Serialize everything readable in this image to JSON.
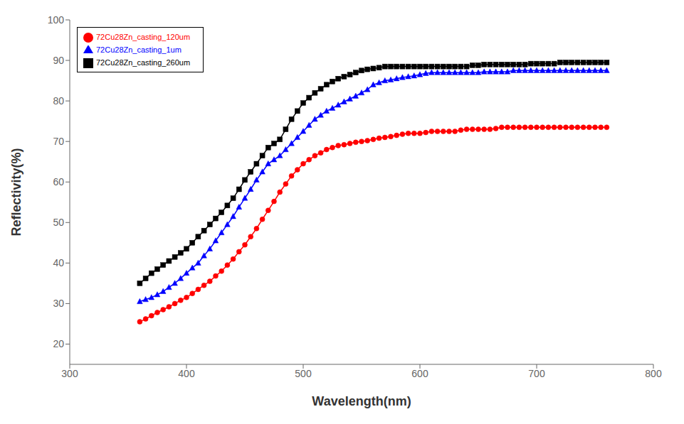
{
  "chart_data": {
    "type": "line",
    "xlabel": "Wavelength(nm)",
    "ylabel": "Reflectivity(%)",
    "xlim": [
      300,
      800
    ],
    "ylim": [
      15,
      100
    ],
    "xticks": [
      300,
      400,
      500,
      600,
      700,
      800
    ],
    "yticks": [
      20,
      30,
      40,
      50,
      60,
      70,
      80,
      90,
      100
    ],
    "grid": false,
    "legend": "upper left",
    "x": [
      360,
      365,
      370,
      375,
      380,
      385,
      390,
      395,
      400,
      405,
      410,
      415,
      420,
      425,
      430,
      435,
      440,
      445,
      450,
      455,
      460,
      465,
      470,
      475,
      480,
      485,
      490,
      495,
      500,
      505,
      510,
      515,
      520,
      525,
      530,
      535,
      540,
      545,
      550,
      555,
      560,
      565,
      570,
      575,
      580,
      585,
      590,
      595,
      600,
      605,
      610,
      615,
      620,
      625,
      630,
      635,
      640,
      645,
      650,
      655,
      660,
      665,
      670,
      675,
      680,
      685,
      690,
      695,
      700,
      705,
      710,
      715,
      720,
      725,
      730,
      735,
      740,
      745,
      750,
      755,
      760
    ],
    "series": [
      {
        "name": "72Cu28Zn_casting_260um",
        "color": "#000000",
        "marker": "square",
        "values": [
          35.0,
          36.2,
          37.5,
          38.5,
          39.5,
          40.5,
          41.5,
          42.5,
          43.5,
          45.0,
          46.5,
          48.0,
          49.5,
          51.0,
          52.5,
          54.2,
          56.0,
          58.2,
          60.5,
          62.5,
          64.5,
          66.5,
          68.5,
          69.5,
          70.5,
          73.0,
          75.5,
          77.5,
          79.5,
          80.8,
          82.0,
          83.0,
          84.0,
          84.8,
          85.5,
          86.0,
          86.5,
          87.0,
          87.5,
          87.8,
          88.0,
          88.2,
          88.5,
          88.5,
          88.5,
          88.5,
          88.5,
          88.5,
          88.5,
          88.5,
          88.5,
          88.5,
          88.5,
          88.5,
          88.5,
          88.5,
          88.5,
          88.8,
          88.8,
          89.0,
          89.0,
          89.0,
          89.0,
          89.0,
          89.0,
          89.0,
          89.0,
          89.2,
          89.2,
          89.2,
          89.2,
          89.2,
          89.5,
          89.5,
          89.5,
          89.5,
          89.5,
          89.5,
          89.5,
          89.5,
          89.5
        ]
      },
      {
        "name": "72Cu28Zn_casting_120um",
        "color": "#ff0000",
        "marker": "circle",
        "values": [
          25.5,
          26.2,
          27.0,
          27.8,
          28.5,
          29.2,
          30.0,
          30.8,
          31.5,
          32.5,
          33.5,
          34.5,
          35.5,
          36.8,
          38.0,
          39.5,
          41.0,
          42.8,
          44.5,
          46.5,
          48.5,
          50.8,
          53.0,
          55.2,
          57.5,
          59.5,
          61.5,
          63.0,
          64.5,
          65.5,
          66.5,
          67.2,
          68.0,
          68.5,
          69.0,
          69.2,
          69.5,
          69.8,
          70.0,
          70.2,
          70.5,
          70.8,
          71.0,
          71.2,
          71.5,
          71.8,
          72.0,
          72.0,
          72.0,
          72.2,
          72.5,
          72.5,
          72.5,
          72.5,
          72.5,
          72.8,
          73.0,
          73.0,
          73.0,
          73.0,
          73.0,
          73.2,
          73.5,
          73.5,
          73.5,
          73.5,
          73.5,
          73.5,
          73.5,
          73.5,
          73.5,
          73.5,
          73.5,
          73.5,
          73.5,
          73.5,
          73.5,
          73.5,
          73.5,
          73.5,
          73.5
        ]
      },
      {
        "name": "72Cu28Zn_casting_1um",
        "color": "#0000ff",
        "marker": "triangle",
        "values": [
          30.5,
          31.0,
          31.5,
          32.2,
          33.0,
          34.0,
          35.0,
          36.2,
          37.5,
          38.8,
          40.0,
          41.8,
          43.5,
          45.5,
          47.5,
          49.5,
          51.5,
          53.8,
          56.0,
          58.2,
          60.5,
          62.5,
          64.5,
          65.5,
          66.5,
          68.0,
          69.5,
          71.0,
          72.5,
          74.0,
          75.5,
          76.5,
          77.5,
          78.2,
          79.0,
          79.8,
          80.5,
          81.2,
          82.0,
          82.8,
          84.0,
          84.5,
          85.0,
          85.2,
          85.5,
          85.8,
          86.0,
          86.2,
          86.5,
          86.8,
          87.0,
          87.0,
          87.0,
          87.0,
          87.0,
          87.0,
          87.0,
          87.0,
          87.0,
          87.2,
          87.2,
          87.2,
          87.2,
          87.2,
          87.5,
          87.5,
          87.5,
          87.5,
          87.5,
          87.5,
          87.5,
          87.5,
          87.5,
          87.5,
          87.5,
          87.5,
          87.5,
          87.5,
          87.5,
          87.5,
          87.5
        ]
      }
    ]
  }
}
